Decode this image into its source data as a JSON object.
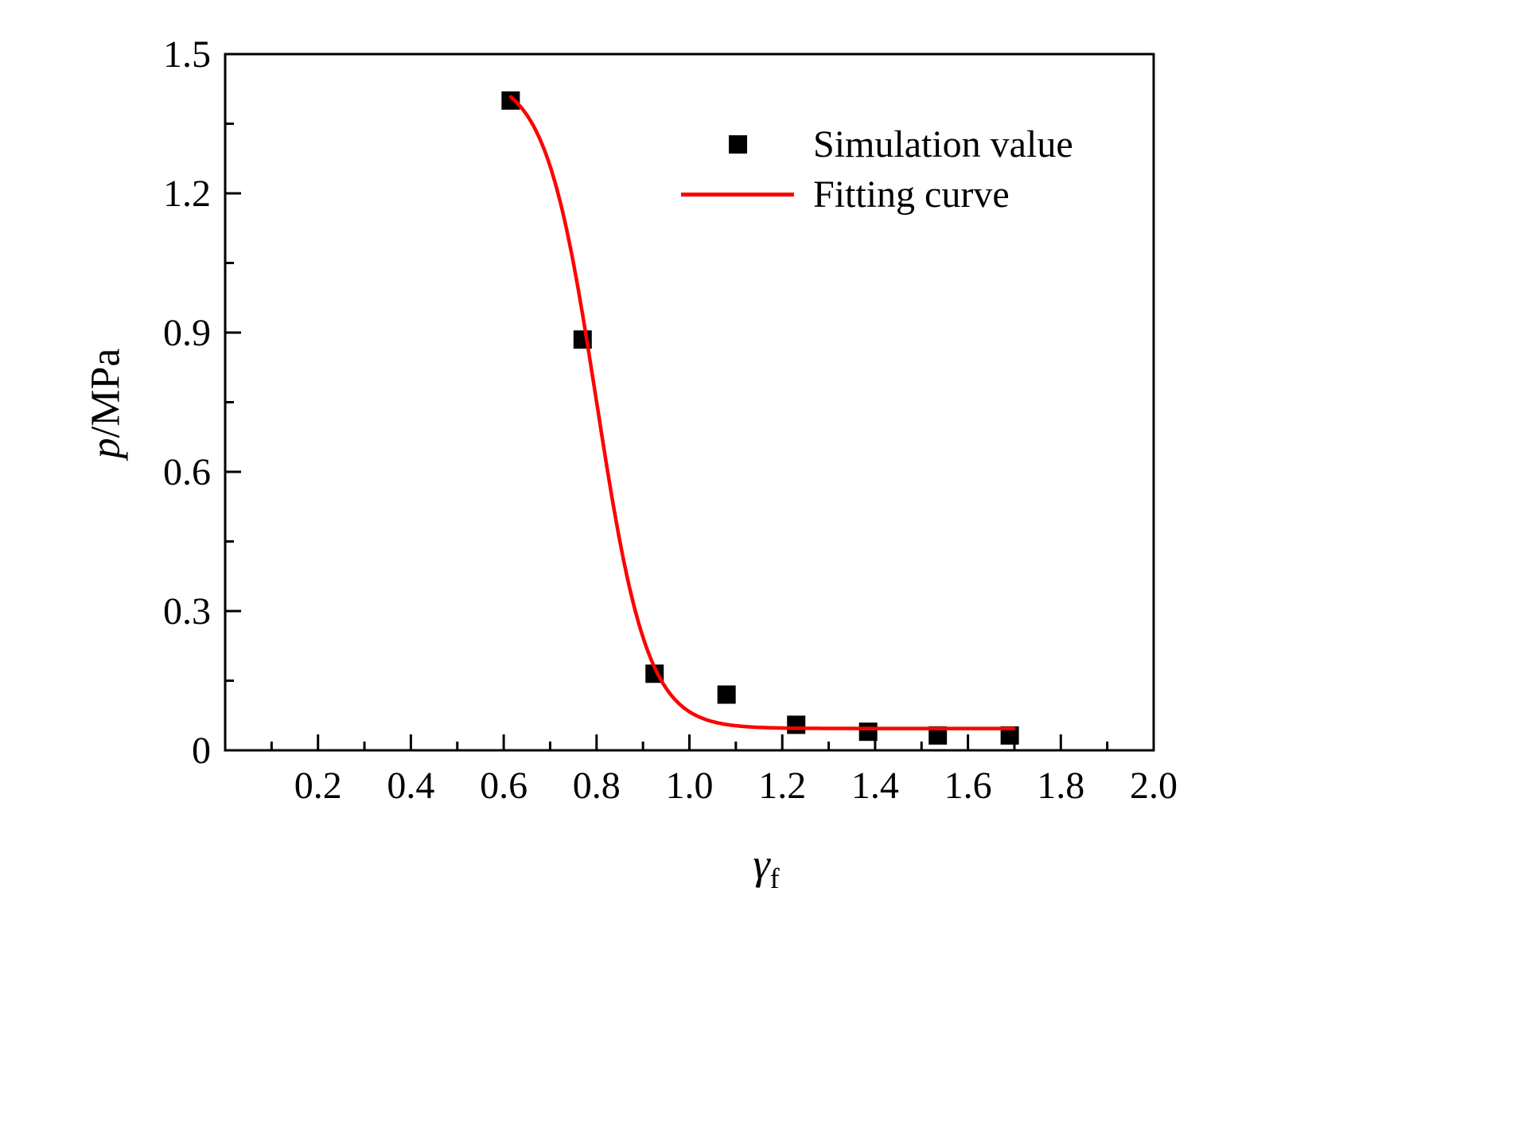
{
  "chart": {
    "ylabel_italic": "p",
    "ylabel_rest": "/MPa",
    "xlabel_symbol": "γ",
    "xlabel_sub": "f"
  },
  "chart_data": {
    "type": "scatter",
    "xlabel": "γ_f",
    "ylabel": "p/MPa",
    "xlim": [
      0,
      2.0
    ],
    "ylim": [
      0,
      1.5
    ],
    "xticks": [
      0.2,
      0.4,
      0.6,
      0.8,
      1.0,
      1.2,
      1.4,
      1.6,
      1.8,
      2.0
    ],
    "xtick_labels": [
      "0.2",
      "0.4",
      "0.6",
      "0.8",
      "1.0",
      "1.2",
      "1.4",
      "1.6",
      "1.8",
      "2.0"
    ],
    "yticks": [
      0,
      0.3,
      0.6,
      0.9,
      1.2,
      1.5
    ],
    "ytick_labels": [
      "0",
      "0.3",
      "0.6",
      "0.9",
      "1.2",
      "1.5"
    ],
    "x_minor_step": 0.1,
    "y_minor_step": 0.15,
    "grid": false,
    "legend_position": "upper-right-inside",
    "axis_color": "#000000",
    "series": [
      {
        "name": "Simulation value",
        "type": "scatter",
        "marker": "square",
        "color": "#000000",
        "points": [
          [
            0.615,
            1.4
          ],
          [
            0.77,
            0.885
          ],
          [
            0.925,
            0.165
          ],
          [
            1.08,
            0.12
          ],
          [
            1.23,
            0.055
          ],
          [
            1.385,
            0.04
          ],
          [
            1.535,
            0.032
          ],
          [
            1.69,
            0.032
          ]
        ]
      },
      {
        "name": "Fitting curve",
        "type": "line",
        "color": "#FF0000",
        "model": "boltzmann",
        "params": {
          "A1": 1.455,
          "A2": 0.047,
          "x0": 0.8,
          "dx": 0.055
        },
        "x_start": 0.615,
        "x_end": 1.7
      }
    ]
  }
}
